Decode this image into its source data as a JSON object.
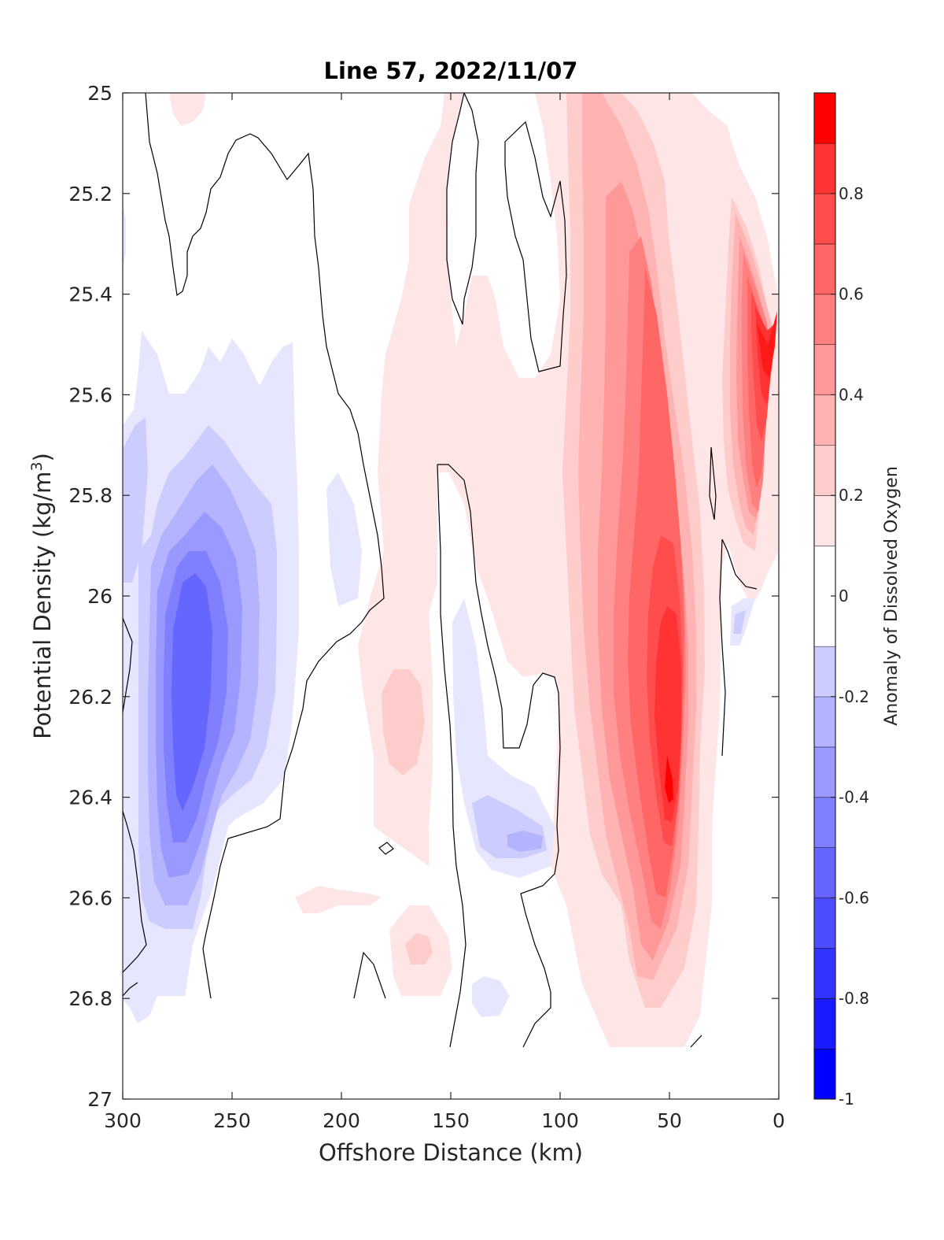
{
  "chart_data": {
    "type": "heatmap",
    "subtype": "filled-contour",
    "title": "Line 57, 2022/11/07",
    "xlabel": "Offshore Distance (km)",
    "ylabel": "Potential Density (kg/m",
    "ylabel_sup": "3",
    "ylabel_close": ")",
    "colorbar_label": "Anomaly of Dissolved Oxygen",
    "xlim": [
      300,
      0
    ],
    "x_reversed": true,
    "ylim": [
      25,
      27
    ],
    "y_reversed": true,
    "x_ticks": [
      300,
      250,
      200,
      150,
      100,
      50,
      0
    ],
    "y_ticks": [
      25,
      25.2,
      25.4,
      25.6,
      25.8,
      26,
      26.2,
      26.4,
      26.6,
      26.8,
      27
    ],
    "y_tick_labels": [
      "25",
      "25.2",
      "25.4",
      "25.6",
      "25.8",
      "26",
      "26.2",
      "26.4",
      "26.6",
      "26.8",
      "27"
    ],
    "colorbar": {
      "range": [
        -1,
        1
      ],
      "levels": [
        -1,
        -0.9,
        -0.8,
        -0.7,
        -0.6,
        -0.5,
        -0.4,
        -0.3,
        -0.2,
        -0.1,
        0.1,
        0.2,
        0.3,
        0.4,
        0.5,
        0.6,
        0.7,
        0.8,
        0.9,
        1
      ],
      "ticks": [
        -1,
        -0.8,
        -0.6,
        -0.4,
        -0.2,
        0,
        0.2,
        0.4,
        0.6,
        0.8
      ],
      "tick_labels": [
        "-1",
        "-0.8",
        "-0.6",
        "-0.4",
        "-0.2",
        "0",
        "0.2",
        "0.4",
        "0.6",
        "0.8"
      ],
      "colormap": "blue-white-red",
      "colors": [
        "#0000ff",
        "#1a1aff",
        "#3333ff",
        "#4d4dff",
        "#6666ff",
        "#8080ff",
        "#9999ff",
        "#b3b3ff",
        "#ccccff",
        "#e6e6ff",
        "#ffffff",
        "#ffe6e6",
        "#ffcccc",
        "#ffb3b3",
        "#ff9999",
        "#ff8080",
        "#ff6666",
        "#ff4d4d",
        "#ff3333",
        "#ff1a1a",
        "#ff0000"
      ]
    },
    "regions": [
      {
        "feature": "positive anomaly core",
        "level": 0.8,
        "x": [
          40,
          60
        ],
        "y": [
          26.0,
          26.5
        ],
        "peak": 0.85,
        "peak_at": [
          50,
          26.4
        ]
      },
      {
        "feature": "positive anomaly band",
        "level": 0.4,
        "x": [
          30,
          90
        ],
        "y": [
          25.0,
          26.9
        ]
      },
      {
        "feature": "nearshore positive anomaly",
        "level": 0.8,
        "x": [
          0,
          30
        ],
        "y": [
          25.2,
          26.0
        ],
        "peak": 0.95,
        "peak_at": [
          5,
          25.5
        ]
      },
      {
        "feature": "negative anomaly core",
        "level": -0.55,
        "x": [
          250,
          290
        ],
        "y": [
          25.8,
          26.7
        ],
        "peak": -0.6,
        "peak_at": [
          270,
          26.2
        ]
      },
      {
        "feature": "negative anomaly lobe",
        "level": -0.25,
        "x": [
          105,
          155
        ],
        "y": [
          26.0,
          26.6
        ],
        "peak": -0.3,
        "peak_at": [
          115,
          26.5
        ]
      },
      {
        "feature": "positive anomaly lobe",
        "level": 0.2,
        "x": [
          150,
          200
        ],
        "y": [
          25.8,
          26.8
        ],
        "peak": 0.25,
        "peak_at": [
          165,
          26.7
        ]
      }
    ]
  }
}
